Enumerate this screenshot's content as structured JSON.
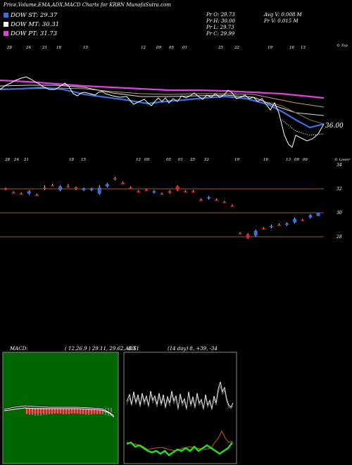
{
  "header": {
    "title": "Price,Volume,EMA,ADX,MACD Charts for KRBN  MunafaSutra.com"
  },
  "legend": [
    {
      "label": "DOW ST: 29.37",
      "color": "#3a6fe0"
    },
    {
      "label": "DOW MT: 30.31",
      "color": "#ffffff"
    },
    {
      "label": "DOW PT: 31.73",
      "color": "#e040e0"
    }
  ],
  "stats": {
    "pr_o": "Pr  O: 29.73",
    "pr_h": "Pr  H: 30.00",
    "pr_l": "Pr  L: 29.73",
    "pr_c": "Pr  C: 29.99",
    "avg_v": "Avg V: 0.008  M",
    "pr_v": "Pr  V: 0.015 M"
  },
  "top_panel": {
    "corner_label": "© Top",
    "price_label": "36.00",
    "top_dates": [
      "28",
      "24",
      "21",
      "18",
      "15",
      "12",
      "09",
      "05",
      "01",
      "25",
      "22",
      "19",
      "16",
      "13",
      "09",
      "06",
      "03",
      "30",
      "27",
      "24"
    ],
    "bottom_dates": [
      "28",
      "24",
      "21",
      "18",
      "15",
      "12",
      "09",
      "05",
      "01",
      "25",
      "22",
      "19",
      "16",
      "13",
      "09",
      "06",
      "03",
      "30",
      "27",
      "24"
    ]
  },
  "candle_panel": {
    "corner_label": "© Lower",
    "y_ticks": [
      "34",
      "32",
      "30",
      "28"
    ]
  },
  "macd": {
    "label": "MACD:",
    "values": "( 12,26,9 ) 29.11, 29.62, -0.51"
  },
  "adx": {
    "label": "ADX",
    "values": "(14  day) 8, +39, -34"
  },
  "colors": {
    "up": "#3a6fe0",
    "down": "#e02020",
    "hline": "#a05a20",
    "dow_st": "#3a6fe0",
    "dow_mt": "#ffffff",
    "dow_pt": "#e040e0"
  },
  "chart_data": {
    "type": "candlestick",
    "y_axis_ticks": [
      34,
      32,
      30,
      28
    ],
    "reference_lines": [
      32,
      30,
      28
    ],
    "candles": [
      {
        "o": 32.0,
        "h": 32.1,
        "l": 31.9,
        "c": 32.0,
        "dir": "down"
      },
      {
        "o": 31.7,
        "h": 31.8,
        "l": 31.6,
        "c": 31.7,
        "dir": "down"
      },
      {
        "o": 31.6,
        "h": 31.7,
        "l": 31.5,
        "c": 31.6,
        "dir": "down"
      },
      {
        "o": 31.6,
        "h": 31.9,
        "l": 31.5,
        "c": 31.8,
        "dir": "up"
      },
      {
        "o": 31.5,
        "h": 31.6,
        "l": 31.4,
        "c": 31.5,
        "dir": "down"
      },
      {
        "o": 32.0,
        "h": 32.3,
        "l": 31.9,
        "c": 32.1,
        "dir": "down"
      },
      {
        "o": 32.3,
        "h": 32.4,
        "l": 32.2,
        "c": 32.3,
        "dir": "down"
      },
      {
        "o": 31.9,
        "h": 32.3,
        "l": 31.8,
        "c": 32.2,
        "dir": "up"
      },
      {
        "o": 32.2,
        "h": 32.4,
        "l": 32.1,
        "c": 32.2,
        "dir": "down"
      },
      {
        "o": 32.1,
        "h": 32.2,
        "l": 31.9,
        "c": 32.0,
        "dir": "down"
      },
      {
        "o": 31.9,
        "h": 32.1,
        "l": 31.8,
        "c": 32.0,
        "dir": "up"
      },
      {
        "o": 31.9,
        "h": 32.1,
        "l": 31.8,
        "c": 32.0,
        "dir": "up"
      },
      {
        "o": 31.6,
        "h": 32.3,
        "l": 31.5,
        "c": 32.1,
        "dir": "up"
      },
      {
        "o": 32.2,
        "h": 32.5,
        "l": 32.1,
        "c": 32.4,
        "dir": "up"
      },
      {
        "o": 32.9,
        "h": 33.0,
        "l": 32.7,
        "c": 32.8,
        "dir": "down"
      },
      {
        "o": 32.5,
        "h": 32.6,
        "l": 32.4,
        "c": 32.5,
        "dir": "down"
      },
      {
        "o": 32.1,
        "h": 32.2,
        "l": 32.0,
        "c": 32.1,
        "dir": "down"
      },
      {
        "o": 31.8,
        "h": 31.9,
        "l": 31.7,
        "c": 31.8,
        "dir": "down"
      },
      {
        "o": 31.9,
        "h": 32.0,
        "l": 31.8,
        "c": 31.9,
        "dir": "down"
      },
      {
        "o": 31.7,
        "h": 31.9,
        "l": 31.6,
        "c": 31.8,
        "dir": "up"
      },
      {
        "o": 31.6,
        "h": 31.7,
        "l": 31.5,
        "c": 31.6,
        "dir": "down"
      },
      {
        "o": 31.8,
        "h": 31.9,
        "l": 31.6,
        "c": 31.7,
        "dir": "down"
      },
      {
        "o": 32.2,
        "h": 32.3,
        "l": 31.8,
        "c": 31.9,
        "dir": "down"
      },
      {
        "o": 31.8,
        "h": 31.9,
        "l": 31.7,
        "c": 31.8,
        "dir": "down"
      },
      {
        "o": 31.8,
        "h": 31.9,
        "l": 31.7,
        "c": 31.8,
        "dir": "down"
      },
      {
        "o": 31.1,
        "h": 31.2,
        "l": 31.0,
        "c": 31.1,
        "dir": "down"
      },
      {
        "o": 31.2,
        "h": 31.4,
        "l": 31.1,
        "c": 31.3,
        "dir": "up"
      },
      {
        "o": 31.1,
        "h": 31.2,
        "l": 31.0,
        "c": 31.1,
        "dir": "down"
      },
      {
        "o": 30.9,
        "h": 31.0,
        "l": 30.8,
        "c": 30.9,
        "dir": "down"
      },
      {
        "o": 30.6,
        "h": 30.7,
        "l": 30.5,
        "c": 30.6,
        "dir": "down"
      },
      {
        "o": 28.3,
        "h": 28.4,
        "l": 28.2,
        "c": 28.3,
        "dir": "down"
      },
      {
        "o": 28.2,
        "h": 28.3,
        "l": 27.8,
        "c": 27.9,
        "dir": "down"
      },
      {
        "o": 28.1,
        "h": 28.6,
        "l": 28.0,
        "c": 28.5,
        "dir": "up"
      },
      {
        "o": 28.7,
        "h": 28.8,
        "l": 28.6,
        "c": 28.7,
        "dir": "down"
      },
      {
        "o": 28.8,
        "h": 29.0,
        "l": 28.7,
        "c": 28.9,
        "dir": "up"
      },
      {
        "o": 29.0,
        "h": 29.1,
        "l": 28.9,
        "c": 29.0,
        "dir": "down"
      },
      {
        "o": 29.0,
        "h": 29.2,
        "l": 28.9,
        "c": 29.1,
        "dir": "up"
      },
      {
        "o": 29.2,
        "h": 29.6,
        "l": 29.1,
        "c": 29.5,
        "dir": "up"
      },
      {
        "o": 29.4,
        "h": 29.5,
        "l": 29.3,
        "c": 29.4,
        "dir": "down"
      },
      {
        "o": 29.6,
        "h": 29.9,
        "l": 29.5,
        "c": 29.8,
        "dir": "up"
      },
      {
        "o": 29.73,
        "h": 30.0,
        "l": 29.73,
        "c": 29.99,
        "dir": "up"
      }
    ]
  }
}
